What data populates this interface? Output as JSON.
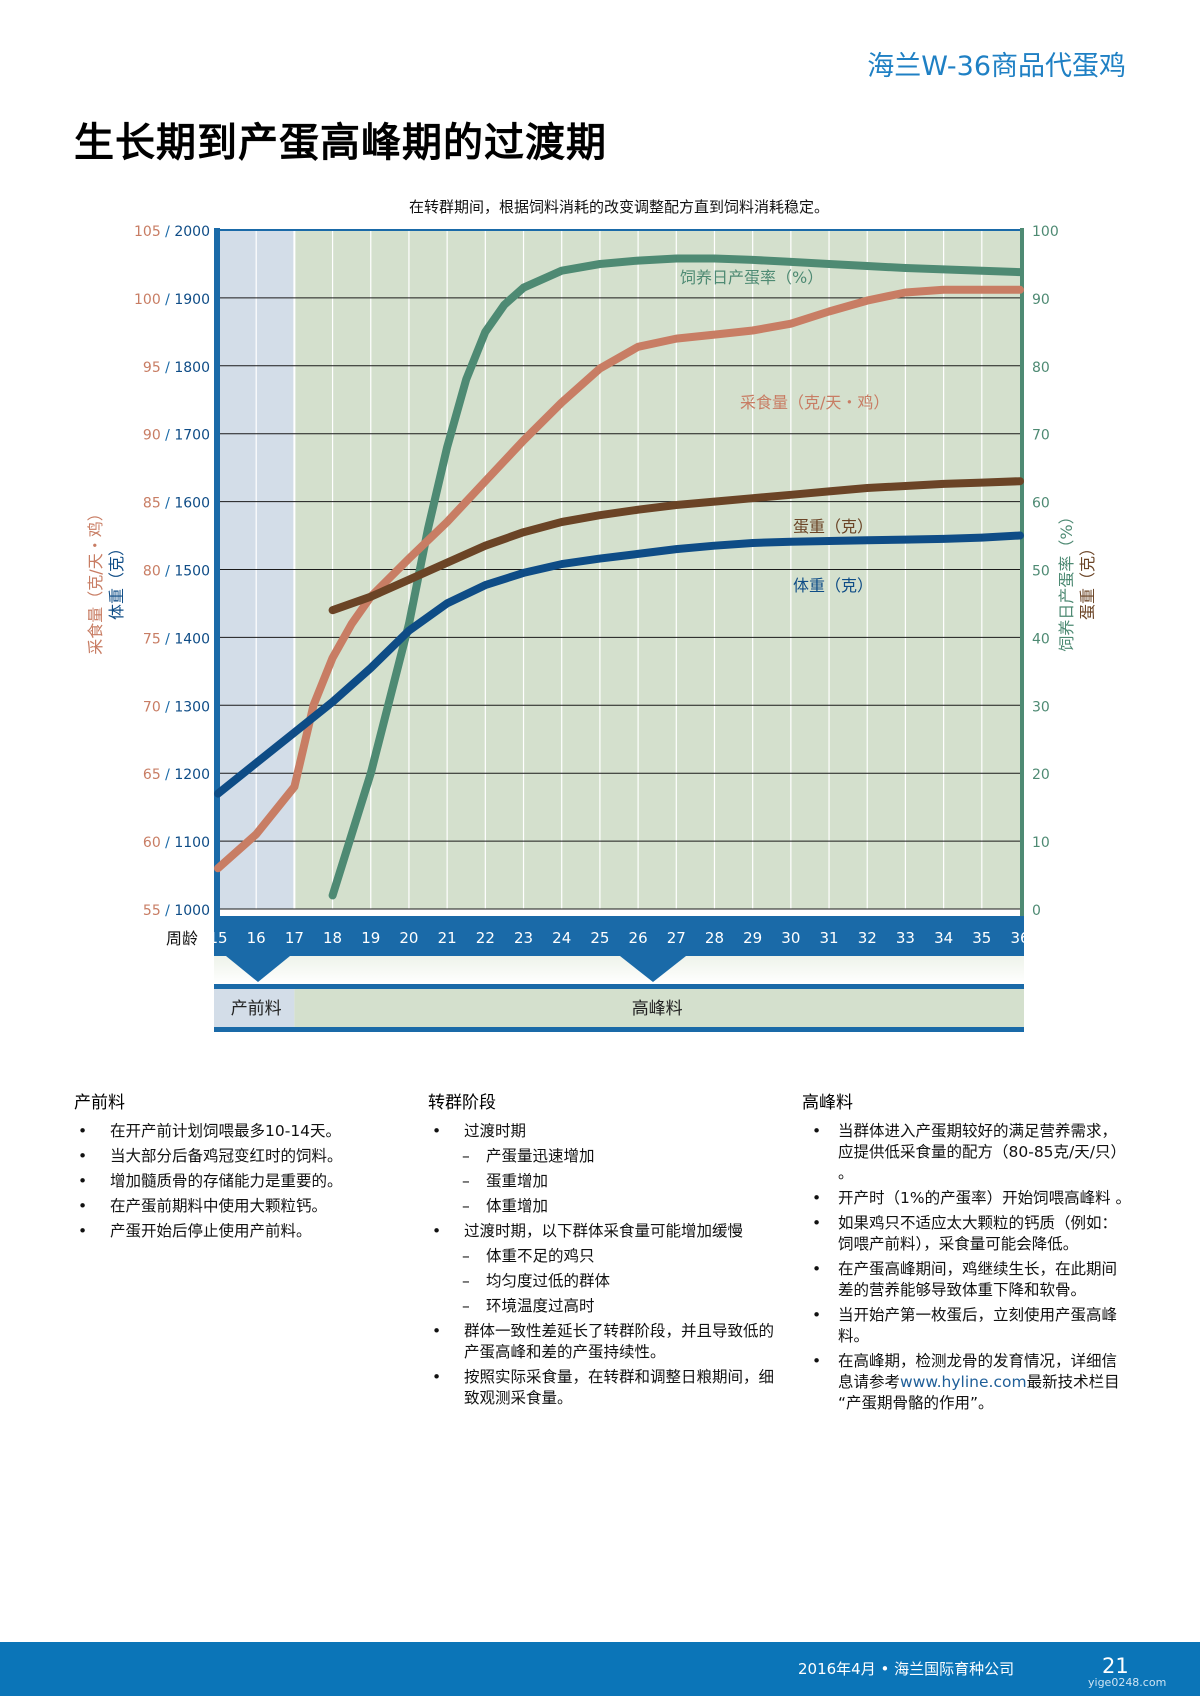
{
  "header": {
    "brand": "海兰W-36商品代蛋鸡",
    "page_title": "生长期到产蛋高峰期的过渡期"
  },
  "chart_data": {
    "type": "line",
    "title": "在转群期间，根据饲料消耗的改变调整配方直到饲料消耗稳定。",
    "xlabel": "周龄",
    "x": [
      15,
      16,
      17,
      18,
      19,
      20,
      21,
      22,
      23,
      24,
      25,
      26,
      27,
      28,
      29,
      30,
      31,
      32,
      33,
      34,
      35,
      36
    ],
    "left_axis": {
      "label_feed": "采食量（克/天・鸡）",
      "label_body": "体重（克）",
      "ticks_feed": [
        "105",
        "100",
        "95",
        "90",
        "85",
        "80",
        "75",
        "70",
        "65",
        "60",
        "55"
      ],
      "ticks_body": [
        "2000",
        "1900",
        "1800",
        "1700",
        "1600",
        "1500",
        "1400",
        "1300",
        "1200",
        "1100",
        "1000"
      ],
      "feed_range": [
        55,
        105
      ],
      "body_range": [
        1000,
        2000
      ]
    },
    "right_axis": {
      "label_rate": "饲养日产蛋率（%）",
      "label_egg": "蛋重（克）",
      "ticks": [
        "100",
        "90",
        "80",
        "70",
        "60",
        "50",
        "40",
        "30",
        "20",
        "10",
        "0"
      ],
      "range": [
        0,
        100
      ]
    },
    "series": [
      {
        "name": "饲养日产蛋率（%）",
        "axis": "right",
        "color": "#4e8a73",
        "x": [
          18,
          19,
          20,
          20.5,
          21,
          21.5,
          22,
          22.5,
          23,
          24,
          25,
          26,
          27,
          28,
          29,
          30,
          31,
          32,
          33,
          34,
          35,
          36
        ],
        "values": [
          2,
          20,
          42,
          56,
          68,
          78,
          85,
          89,
          91.5,
          94,
          95,
          95.5,
          95.8,
          95.8,
          95.6,
          95.3,
          95,
          94.7,
          94.4,
          94.2,
          94,
          93.8
        ]
      },
      {
        "name": "采食量（克/天・鸡）",
        "axis": "feed",
        "color": "#c87d64",
        "x": [
          15,
          16,
          17,
          17.5,
          18,
          18.5,
          19,
          20,
          21,
          22,
          23,
          24,
          25,
          26,
          27,
          28,
          29,
          30,
          31,
          32,
          33,
          34,
          35,
          36
        ],
        "values": [
          58,
          60.5,
          64,
          70,
          73.5,
          76,
          78,
          80.8,
          83.5,
          86.5,
          89.5,
          92.3,
          94.8,
          96.4,
          97,
          97.3,
          97.6,
          98.1,
          99,
          99.8,
          100.4,
          100.6,
          100.6,
          100.6
        ]
      },
      {
        "name": "蛋重（克）",
        "axis": "right",
        "color": "#6b4426",
        "x": [
          18,
          19,
          20,
          21,
          22,
          23,
          24,
          25,
          26,
          27,
          28,
          29,
          30,
          31,
          32,
          33,
          34,
          35,
          36
        ],
        "values": [
          44,
          46,
          48.5,
          51,
          53.5,
          55.5,
          57,
          58,
          58.8,
          59.5,
          60,
          60.5,
          61,
          61.5,
          62,
          62.3,
          62.6,
          62.8,
          63
        ]
      },
      {
        "name": "体重（克）",
        "axis": "body",
        "color": "#0e4c86",
        "x": [
          15,
          16,
          17,
          18,
          19,
          20,
          21,
          22,
          23,
          24,
          25,
          26,
          27,
          28,
          29,
          30,
          31,
          32,
          33,
          34,
          35,
          36
        ],
        "values": [
          1170,
          1215,
          1260,
          1305,
          1355,
          1410,
          1450,
          1477,
          1495,
          1508,
          1516,
          1523,
          1530,
          1535,
          1539,
          1541,
          1542,
          1543,
          1544,
          1545,
          1547,
          1550
        ]
      }
    ],
    "phases": [
      {
        "label": "产前料",
        "from": 15,
        "to": 17
      },
      {
        "label": "高峰料",
        "from": 17,
        "to": 36
      }
    ],
    "colors": {
      "prelay": "#d3dde8",
      "peak": "#d4e0cd",
      "axis_blue": "#1a6aa8",
      "axis_green": "#4e8a73",
      "feed_label": "#c87d64",
      "body_label": "#0e4c86",
      "egg_label": "#6b4426"
    },
    "grid": true
  },
  "columns": [
    {
      "title": "产前料",
      "items": [
        {
          "kind": "b",
          "text": "在开产前计划饲喂最多10-14天。"
        },
        {
          "kind": "b",
          "text": "当大部分后备鸡冠变红时的饲料。"
        },
        {
          "kind": "b",
          "text": " 增加髓质骨的存储能力是重要的。"
        },
        {
          "kind": "b",
          "text": "在产蛋前期料中使用大颗粒钙。"
        },
        {
          "kind": "b",
          "text": "产蛋开始后停止使用产前料。"
        }
      ]
    },
    {
      "title": "转群阶段",
      "items": [
        {
          "kind": "b",
          "text": "过渡时期"
        },
        {
          "kind": "d",
          "text": "产蛋量迅速增加"
        },
        {
          "kind": "d",
          "text": "蛋重增加"
        },
        {
          "kind": "d",
          "text": "体重增加"
        },
        {
          "kind": "b",
          "text": "过渡时期，以下群体采食量可能增加缓慢"
        },
        {
          "kind": "d",
          "text": "体重不足的鸡只"
        },
        {
          "kind": "d",
          "text": "均匀度过低的群体"
        },
        {
          "kind": "d",
          "text": "环境温度过高时"
        },
        {
          "kind": "b",
          "text": "群体一致性差延长了转群阶段，并且导致低的产蛋高峰和差的产蛋持续性。"
        },
        {
          "kind": "b",
          "text": "按照实际采食量，在转群和调整日粮期间，细致观测采食量。"
        }
      ]
    },
    {
      "title": "高峰料",
      "items": [
        {
          "kind": "sb",
          "text": "当群体进入产蛋期较好的满足营养需求，应提供低采食量的配方（80-85克/天/只） 。"
        },
        {
          "kind": "sb",
          "text": "开产时（1%的产蛋率）开始饲喂高峰料 。"
        },
        {
          "kind": "sb",
          "text": "如果鸡只不适应太大颗粒的钙质（例如：饲喂产前料），采食量可能会降低。"
        },
        {
          "kind": "sb",
          "text": "在产蛋高峰期间，鸡继续生长，在此期间差的营养能够导致体重下降和软骨。"
        },
        {
          "kind": "sb",
          "text": "当开始产第一枚蛋后，立刻使用产蛋高峰料。"
        },
        {
          "kind": "sb",
          "text": "在高峰期，检测龙骨的发育情况，详细信息请参考",
          "url": "www.hyline.com",
          "text_after": "最新技术栏目 “产蛋期骨骼的作用”。"
        }
      ]
    }
  ],
  "footer": {
    "text": "2016年4月  •  海兰国际育种公司",
    "page_number": "21",
    "watermark": "yige0248.com"
  }
}
